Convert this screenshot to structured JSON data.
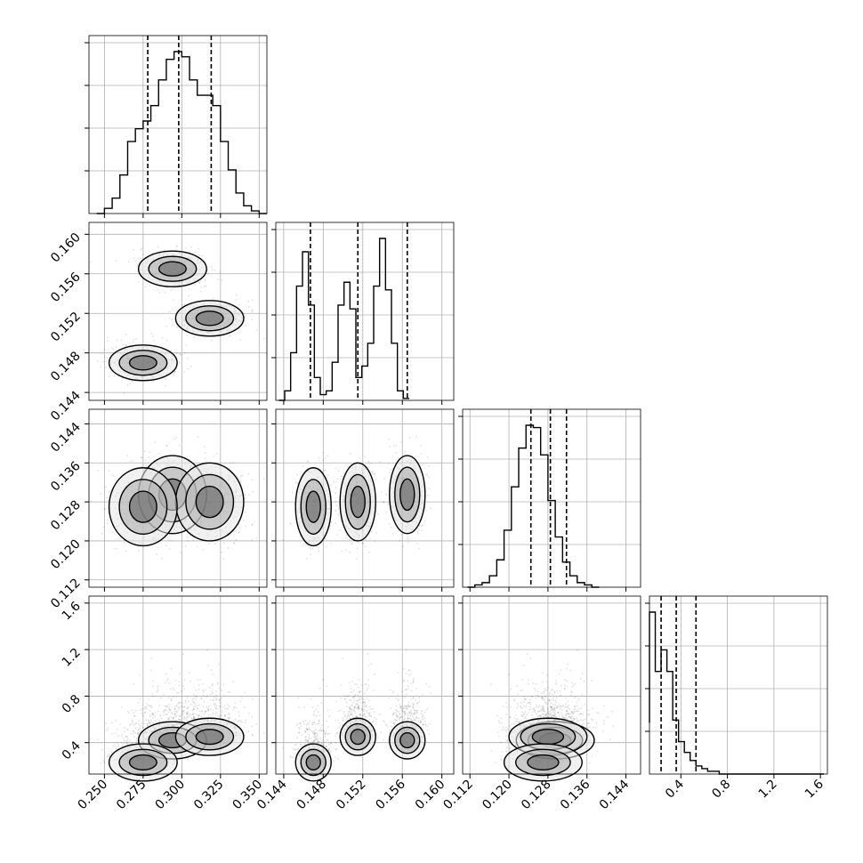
{
  "chart_data": {
    "type": "corner",
    "title": "",
    "parameters": [
      {
        "range": [
          0.24,
          0.355
        ],
        "ticks": [
          "0.250",
          "0.275",
          "0.300",
          "0.325",
          "0.350"
        ],
        "tick_values": [
          0.25,
          0.275,
          0.3,
          0.325,
          0.35
        ]
      },
      {
        "range": [
          0.1432,
          0.1612
        ],
        "ticks": [
          "0.144",
          "0.148",
          "0.152",
          "0.156",
          "0.160"
        ],
        "tick_values": [
          0.144,
          0.148,
          0.152,
          0.156,
          0.16
        ]
      },
      {
        "range": [
          0.1105,
          0.147
        ],
        "ticks": [
          "0.112",
          "0.120",
          "0.128",
          "0.136",
          "0.144"
        ],
        "tick_values": [
          0.112,
          0.12,
          0.128,
          0.136,
          0.144
        ]
      },
      {
        "range": [
          0.13,
          1.66
        ],
        "ticks": [
          "0.4",
          "0.8",
          "1.2",
          "1.6"
        ],
        "tick_values": [
          0.4,
          0.8,
          1.2,
          1.6
        ]
      }
    ],
    "histograms": [
      {
        "edges_start": 0.245,
        "bin_width": 0.005,
        "counts": [
          0,
          2,
          6,
          15,
          28,
          33,
          36,
          42,
          52,
          60,
          63,
          61,
          52,
          46,
          46,
          42,
          28,
          17,
          8,
          3,
          1,
          0
        ],
        "quantiles": [
          0.278,
          0.298,
          0.319
        ]
      },
      {
        "edges_start": 0.1435,
        "bin_width": 0.0006,
        "counts": [
          0,
          5,
          25,
          60,
          78,
          50,
          12,
          3,
          5,
          20,
          50,
          62,
          48,
          12,
          18,
          30,
          60,
          85,
          58,
          30,
          5,
          1
        ],
        "quantiles": [
          0.1467,
          0.1515,
          0.1565
        ]
      },
      {
        "edges_start": 0.1115,
        "bin_width": 0.0015,
        "counts": [
          0,
          1,
          2,
          5,
          12,
          25,
          44,
          61,
          71,
          70,
          58,
          38,
          22,
          11,
          5,
          2,
          1,
          0
        ],
        "quantiles": [
          0.1245,
          0.1285,
          0.1318
        ]
      },
      {
        "edges_start": 0.08,
        "bin_width": 0.05,
        "counts": [
          19,
          60,
          38,
          46,
          38,
          20,
          12,
          8,
          5,
          3,
          2,
          1,
          1,
          0,
          0,
          0,
          0,
          0,
          0,
          0,
          0,
          0,
          0,
          0,
          0,
          0,
          0,
          0,
          0,
          0,
          0
        ],
        "quantiles": [
          0.23,
          0.36,
          0.53
        ]
      }
    ],
    "modes": [
      {
        "p0": 0.294,
        "p1": 0.1565,
        "p2": 0.1295,
        "p3": 0.42,
        "weight": 0.34
      },
      {
        "p0": 0.318,
        "p1": 0.1515,
        "p2": 0.128,
        "p3": 0.45,
        "weight": 0.33
      },
      {
        "p0": 0.275,
        "p1": 0.147,
        "p2": 0.127,
        "p3": 0.23,
        "weight": 0.33
      }
    ]
  }
}
